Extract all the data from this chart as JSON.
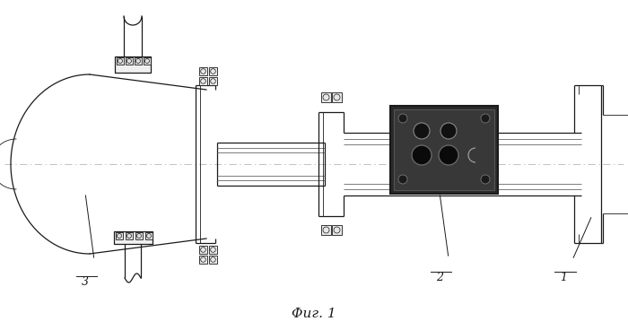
{
  "background_color": "#ffffff",
  "line_color": "#1a1a1a",
  "fig_caption": "Φиг. 1",
  "lw_thin": 0.6,
  "lw_med": 0.9,
  "lw_thick": 1.4
}
